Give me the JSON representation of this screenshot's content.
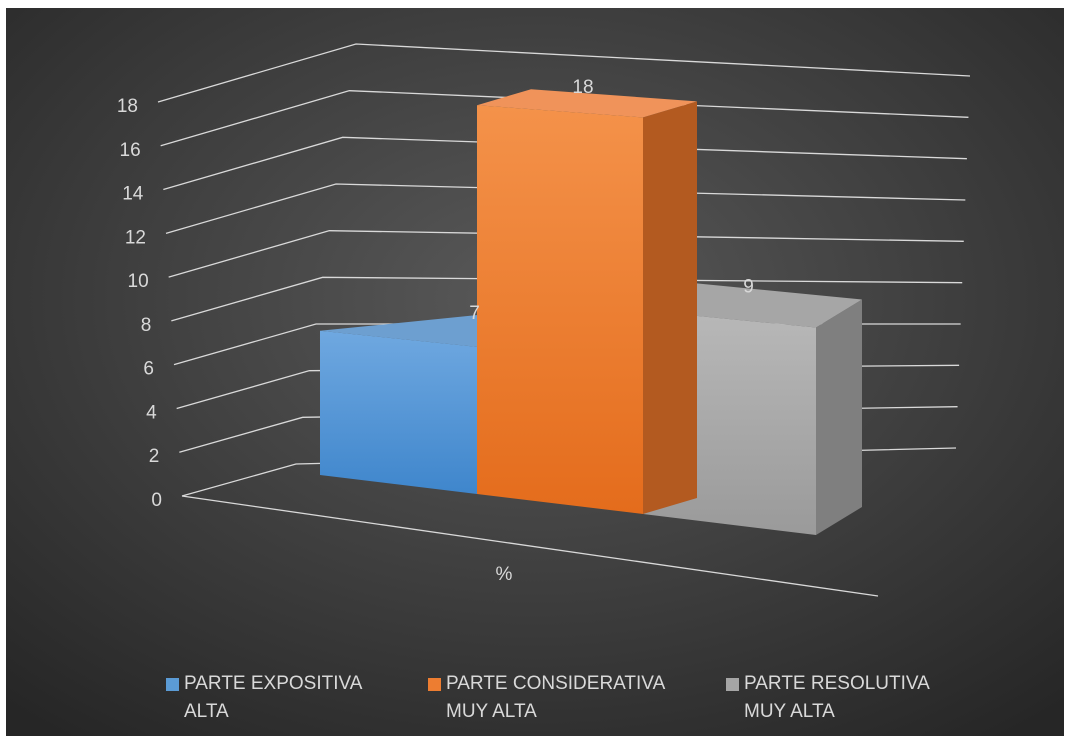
{
  "chart_data": {
    "type": "bar",
    "style": "3d-column",
    "categories": [
      "%"
    ],
    "series": [
      {
        "name": "PARTE EXPOSITIVA\nALTA",
        "values": [
          7
        ],
        "color": "#5b9bd5"
      },
      {
        "name": "PARTE CONSIDERATIVA\nMUY ALTA",
        "values": [
          18
        ],
        "color": "#ed7d31"
      },
      {
        "name": "PARTE RESOLUTIVA\nMUY ALTA",
        "values": [
          9
        ],
        "color": "#a5a5a5"
      }
    ],
    "y_ticks": [
      "0",
      "2",
      "4",
      "6",
      "8",
      "10",
      "12",
      "14",
      "16",
      "18"
    ],
    "ylim": [
      0,
      18
    ],
    "data_labels": [
      "7",
      "18",
      "9"
    ],
    "grid": true,
    "legend_position": "bottom",
    "background": "#404040",
    "text_color": "#d9d9d9"
  }
}
